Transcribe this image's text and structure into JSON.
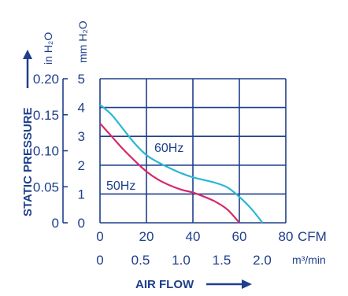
{
  "chart_data": {
    "type": "line",
    "title": "",
    "xlabel": "AIR FLOW",
    "ylabel": "STATIC PRESSURE",
    "grid": true,
    "x_unit_primary": "CFM",
    "x_unit_secondary": "m³/min",
    "y_unit_primary": "in H₂O",
    "y_unit_secondary": "mm H₂O",
    "xlim": [
      0,
      80
    ],
    "ylim_mm": [
      0,
      5
    ],
    "x_ticks_cfm": [
      "0",
      "20",
      "40",
      "60",
      "80"
    ],
    "x_ticks_m3min": [
      "0",
      "0.5",
      "1.0",
      "1.5",
      "2.0"
    ],
    "y_ticks_inh2o": [
      "0",
      "0.05",
      "0.10",
      "0.15",
      "0.20"
    ],
    "y_ticks_mmh2o": [
      "0",
      "1",
      "2",
      "3",
      "4",
      "5"
    ],
    "series": [
      {
        "name": "60Hz",
        "color": "#29b6d6",
        "points": [
          [
            0,
            4.1
          ],
          [
            5,
            3.75
          ],
          [
            10,
            3.25
          ],
          [
            15,
            2.75
          ],
          [
            20,
            2.35
          ],
          [
            25,
            2.1
          ],
          [
            30,
            1.9
          ],
          [
            35,
            1.72
          ],
          [
            40,
            1.58
          ],
          [
            45,
            1.48
          ],
          [
            50,
            1.38
          ],
          [
            55,
            1.22
          ],
          [
            60,
            0.9
          ],
          [
            65,
            0.5
          ],
          [
            70,
            0.0
          ]
        ]
      },
      {
        "name": "50Hz",
        "color": "#d6286b",
        "points": [
          [
            0,
            3.45
          ],
          [
            5,
            3.0
          ],
          [
            10,
            2.55
          ],
          [
            15,
            2.15
          ],
          [
            20,
            1.78
          ],
          [
            25,
            1.5
          ],
          [
            30,
            1.3
          ],
          [
            35,
            1.15
          ],
          [
            40,
            1.05
          ],
          [
            45,
            0.9
          ],
          [
            50,
            0.72
          ],
          [
            55,
            0.45
          ],
          [
            60,
            0.0
          ]
        ]
      }
    ],
    "curve_labels": [
      "60Hz",
      "50Hz"
    ]
  }
}
